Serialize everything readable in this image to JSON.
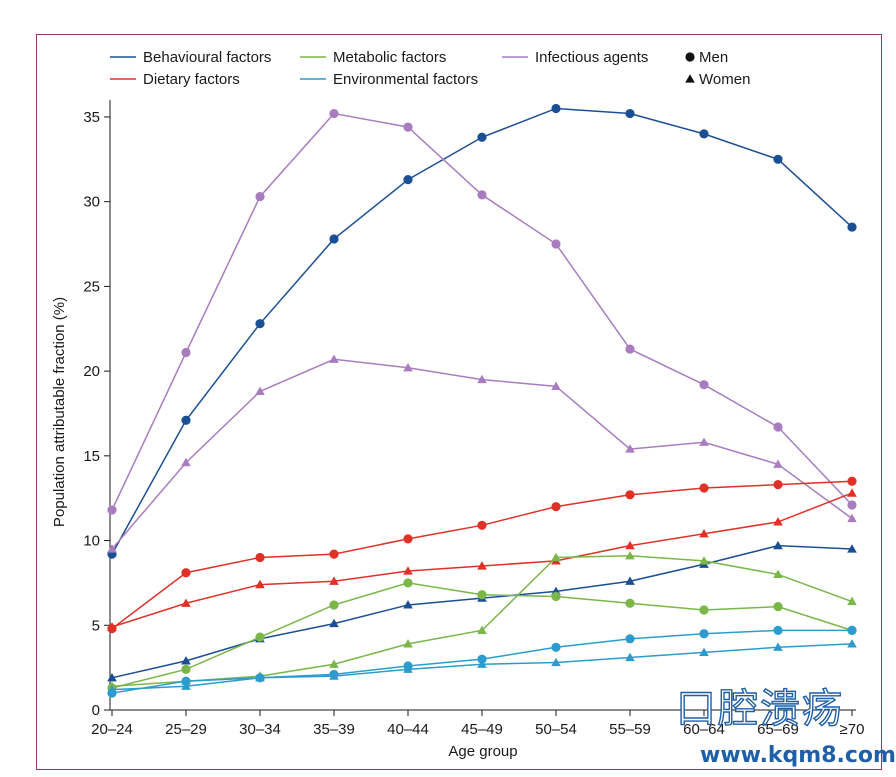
{
  "chart_data": {
    "type": "line",
    "title": "",
    "xlabel": "Age group",
    "ylabel": "Population attributable fraction (%)",
    "ylim": [
      0,
      36
    ],
    "yticks": [
      0,
      5,
      10,
      15,
      20,
      25,
      30,
      35
    ],
    "grid": false,
    "legend_position": "top",
    "categories": [
      "20–24",
      "25–29",
      "30–34",
      "35–39",
      "40–44",
      "45–49",
      "50–54",
      "55–59",
      "60–64",
      "65–69",
      "≥70"
    ],
    "factor_legend": [
      {
        "name": "Behavioural factors",
        "color": "#1b4f93"
      },
      {
        "name": "Metabolic factors",
        "color": "#7ab648"
      },
      {
        "name": "Infectious agents",
        "color": "#a97cc0"
      },
      {
        "name": "Dietary factors",
        "color": "#e03127"
      },
      {
        "name": "Environmental factors",
        "color": "#2b9ccd"
      }
    ],
    "sex_legend": [
      {
        "name": "Men",
        "marker": "circle"
      },
      {
        "name": "Women",
        "marker": "triangle"
      }
    ],
    "series": [
      {
        "factor": "Behavioural factors",
        "sex": "Men",
        "color": "#1b4f93",
        "marker": "circle",
        "values": [
          9.2,
          17.1,
          22.8,
          27.8,
          31.3,
          33.8,
          35.5,
          35.2,
          34.0,
          32.5,
          28.5
        ]
      },
      {
        "factor": "Behavioural factors",
        "sex": "Women",
        "color": "#1b4f93",
        "marker": "triangle",
        "values": [
          1.9,
          2.9,
          4.2,
          5.1,
          6.2,
          6.6,
          7.0,
          7.6,
          8.6,
          9.7,
          9.5
        ]
      },
      {
        "factor": "Infectious agents",
        "sex": "Men",
        "color": "#a97cc0",
        "marker": "circle",
        "values": [
          11.8,
          21.1,
          30.3,
          35.2,
          34.4,
          30.4,
          27.5,
          21.3,
          19.2,
          16.7,
          12.1
        ]
      },
      {
        "factor": "Infectious agents",
        "sex": "Women",
        "color": "#a97cc0",
        "marker": "triangle",
        "values": [
          9.5,
          14.6,
          18.8,
          20.7,
          20.2,
          19.5,
          19.1,
          15.4,
          15.8,
          14.5,
          11.3
        ]
      },
      {
        "factor": "Dietary factors",
        "sex": "Men",
        "color": "#e03127",
        "marker": "circle",
        "values": [
          4.8,
          8.1,
          9.0,
          9.2,
          10.1,
          10.9,
          12.0,
          12.7,
          13.1,
          13.3,
          13.5
        ]
      },
      {
        "factor": "Dietary factors",
        "sex": "Women",
        "color": "#e03127",
        "marker": "triangle",
        "values": [
          4.9,
          6.3,
          7.4,
          7.6,
          8.2,
          8.5,
          8.8,
          9.7,
          10.4,
          11.1,
          12.8
        ]
      },
      {
        "factor": "Metabolic factors",
        "sex": "Men",
        "color": "#7ab648",
        "marker": "circle",
        "values": [
          1.3,
          2.4,
          4.3,
          6.2,
          7.5,
          6.8,
          6.7,
          6.3,
          5.9,
          6.1,
          4.7
        ]
      },
      {
        "factor": "Metabolic factors",
        "sex": "Women",
        "color": "#7ab648",
        "marker": "triangle",
        "values": [
          1.4,
          1.7,
          2.0,
          2.7,
          3.9,
          4.7,
          9.0,
          9.1,
          8.8,
          8.0,
          6.4
        ]
      },
      {
        "factor": "Environmental factors",
        "sex": "Men",
        "color": "#2b9ccd",
        "marker": "circle",
        "values": [
          1.0,
          1.7,
          1.9,
          2.1,
          2.6,
          3.0,
          3.7,
          4.2,
          4.5,
          4.7,
          4.7
        ]
      },
      {
        "factor": "Environmental factors",
        "sex": "Women",
        "color": "#2b9ccd",
        "marker": "triangle",
        "values": [
          1.2,
          1.4,
          1.9,
          2.0,
          2.4,
          2.7,
          2.8,
          3.1,
          3.4,
          3.7,
          3.9
        ]
      }
    ]
  },
  "watermark": {
    "chinese_text": "口腔溃疡",
    "url": "www.kqm8.com"
  }
}
